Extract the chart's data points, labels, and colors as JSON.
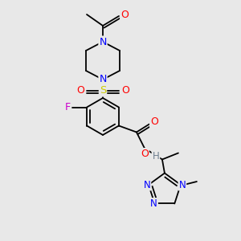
{
  "background_color": "#e8e8e8",
  "bond_color": "#000000",
  "atom_colors": {
    "N": "#0000ff",
    "O": "#ff0000",
    "S": "#cccc00",
    "F": "#cc00cc",
    "H": "#708090",
    "C": "#000000"
  },
  "figsize": [
    3.0,
    3.0
  ],
  "dpi": 100
}
